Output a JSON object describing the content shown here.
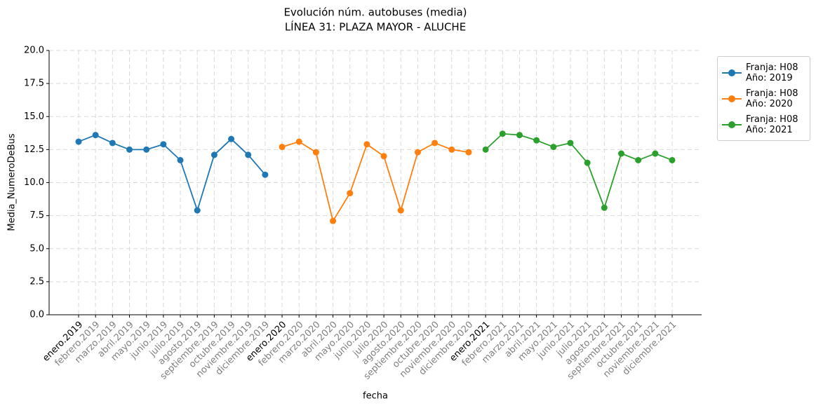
{
  "chart_data": {
    "type": "line",
    "title": "Evolución núm. autobuses (media)",
    "subtitle": "LÍNEA 31: PLAZA MAYOR - ALUCHE",
    "x_label": "fecha",
    "y_label": "Media_NumeroDeBus",
    "categories": [
      "enero.2019",
      "febrero.2019",
      "marzo.2019",
      "abril.2019",
      "mayo.2019",
      "junio.2019",
      "julio.2019",
      "agosto.2019",
      "septiembre.2019",
      "octubre.2019",
      "noviembre.2019",
      "diciembre.2019",
      "enero.2020",
      "febrero.2020",
      "marzo.2020",
      "abril.2020",
      "mayo.2020",
      "junio.2020",
      "julio.2020",
      "agosto.2020",
      "septiembre.2020",
      "octubre.2020",
      "noviembre.2020",
      "diciembre.2020",
      "enero.2021",
      "febrero.2021",
      "marzo.2021",
      "abril.2021",
      "mayo.2021",
      "junio.2021",
      "julio.2021",
      "agosto.2021",
      "septiembre.2021",
      "octubre.2021",
      "noviembre.2021",
      "diciembre.2021"
    ],
    "xtick_label_colors": [
      "#000000",
      "#808080",
      "#808080",
      "#808080",
      "#808080",
      "#808080",
      "#808080",
      "#808080",
      "#808080",
      "#808080",
      "#808080",
      "#808080",
      "#000000",
      "#808080",
      "#808080",
      "#808080",
      "#808080",
      "#808080",
      "#808080",
      "#808080",
      "#808080",
      "#808080",
      "#808080",
      "#808080",
      "#000000",
      "#808080",
      "#808080",
      "#808080",
      "#808080",
      "#808080",
      "#808080",
      "#808080",
      "#808080",
      "#808080",
      "#808080",
      "#808080"
    ],
    "series": [
      {
        "name": "Franja: H08\nAño: 2019",
        "color": "#1f77b4",
        "values": [
          13.1,
          13.6,
          13.0,
          12.5,
          12.5,
          12.9,
          11.7,
          7.9,
          12.1,
          13.3,
          12.1,
          10.6,
          null,
          null,
          null,
          null,
          null,
          null,
          null,
          null,
          null,
          null,
          null,
          null,
          null,
          null,
          null,
          null,
          null,
          null,
          null,
          null,
          null,
          null,
          null,
          null
        ]
      },
      {
        "name": "Franja: H08\nAño: 2020",
        "color": "#ff7f0e",
        "values": [
          null,
          null,
          null,
          null,
          null,
          null,
          null,
          null,
          null,
          null,
          null,
          null,
          12.7,
          13.1,
          12.3,
          7.1,
          9.2,
          12.9,
          12.0,
          7.9,
          12.3,
          13.0,
          12.5,
          12.3,
          null,
          null,
          null,
          null,
          null,
          null,
          null,
          null,
          null,
          null,
          null,
          null
        ]
      },
      {
        "name": "Franja: H08\nAño: 2021",
        "color": "#2ca02c",
        "values": [
          null,
          null,
          null,
          null,
          null,
          null,
          null,
          null,
          null,
          null,
          null,
          null,
          null,
          null,
          null,
          null,
          null,
          null,
          null,
          null,
          null,
          null,
          null,
          null,
          12.5,
          13.7,
          13.6,
          13.2,
          12.7,
          13.0,
          11.5,
          8.1,
          12.2,
          11.7,
          12.2,
          11.7
        ]
      }
    ],
    "ylim": [
      0,
      20
    ],
    "yticks": [
      {
        "value": 0,
        "label": "0.0"
      },
      2.5,
      {
        "value": 5,
        "label": "5.0"
      },
      7.5,
      {
        "value": 10,
        "label": "10.0"
      },
      12.5,
      {
        "value": 15,
        "label": "15.0"
      },
      17.5,
      {
        "value": 20,
        "label": "20.0"
      }
    ],
    "grid": true,
    "legend": "outside upper right"
  }
}
